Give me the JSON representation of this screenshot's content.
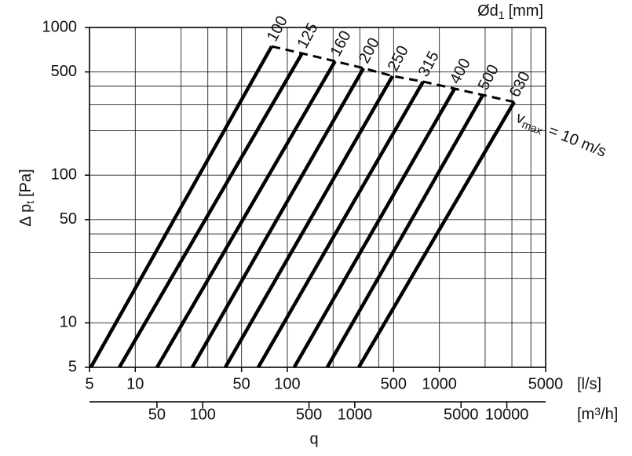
{
  "chart_data": {
    "type": "line",
    "title": {
      "main": "Ød",
      "sub": "1",
      "unit": "[mm]"
    },
    "y_label": {
      "main": "Δ p",
      "sub": "t",
      "unit": "[Pa]"
    },
    "x_label": "q",
    "x_unit": "[l/s]",
    "x2_unit": {
      "main": "[m",
      "sup": "3",
      "rest": "/h]"
    },
    "annotation": {
      "main": "v",
      "sub": "max",
      "rest": "= 10 m/s"
    },
    "xlog": true,
    "ylog": true,
    "xlim": [
      5,
      5000
    ],
    "ylim": [
      5,
      1000
    ],
    "x2lim": [
      18,
      18000
    ],
    "xticks": [
      5,
      10,
      50,
      100,
      500,
      1000,
      5000
    ],
    "x2ticks": [
      50,
      100,
      500,
      1000,
      5000,
      10000
    ],
    "yticks": [
      5,
      10,
      50,
      100,
      500,
      1000
    ],
    "xgrid": [
      10,
      20,
      30,
      40,
      50,
      100,
      200,
      300,
      400,
      500,
      1000,
      2000,
      3000,
      4000,
      5000
    ],
    "ygrid": [
      10,
      20,
      30,
      40,
      50,
      100,
      200,
      300,
      400,
      500,
      1000
    ],
    "color": "#000000",
    "series": [
      {
        "name": "100",
        "x": [
          5.1,
          78.9
        ],
        "values": [
          5,
          745
        ]
      },
      {
        "name": "125",
        "x": [
          7.86,
          125
        ],
        "values": [
          5,
          668
        ]
      },
      {
        "name": "160",
        "x": [
          13.9,
          206
        ],
        "values": [
          5,
          591
        ]
      },
      {
        "name": "200",
        "x": [
          23.7,
          317
        ],
        "values": [
          5,
          530
        ]
      },
      {
        "name": "250",
        "x": [
          39.1,
          492
        ],
        "values": [
          5,
          469
        ]
      },
      {
        "name": "315",
        "x": [
          64.4,
          782
        ],
        "values": [
          5,
          430
        ]
      },
      {
        "name": "400",
        "x": [
          111,
          1259
        ],
        "values": [
          5,
          385
        ]
      },
      {
        "name": "500",
        "x": [
          183,
          1932
        ],
        "values": [
          5,
          349
        ]
      },
      {
        "name": "630",
        "x": [
          295,
          3105
        ],
        "values": [
          5,
          313
        ]
      }
    ]
  }
}
